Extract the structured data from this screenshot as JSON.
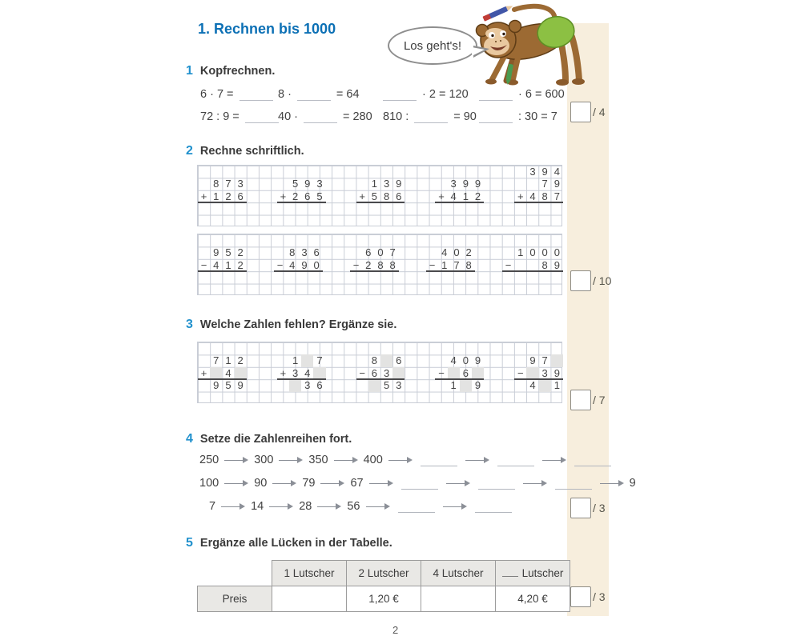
{
  "title": "1. Rechnen bis 1000",
  "bubble_text": "Los geht's!",
  "page_number": "2",
  "colors": {
    "title_blue": "#0c70b5",
    "section_blue": "#2191cd",
    "margin_beige": "#f7eedd",
    "grid_line": "#c9cdd6",
    "shaded_cell": "#e3e3e2"
  },
  "sections": [
    {
      "num": "1",
      "label": "Kopfrechnen.",
      "score": "/ 4"
    },
    {
      "num": "2",
      "label": "Rechne schriftlich.",
      "score": "/ 10"
    },
    {
      "num": "3",
      "label": "Welche Zahlen fehlen? Ergänze sie.",
      "score": "/ 7"
    },
    {
      "num": "4",
      "label": "Setze die Zahlenreihen fort.",
      "score": "/ 3"
    },
    {
      "num": "5",
      "label": "Ergänze alle Lücken in der Tabelle.",
      "score": "/ 3"
    }
  ],
  "exercise1": {
    "rows": [
      [
        [
          "6 · 7 =",
          "_"
        ],
        [
          "8 ·",
          "_",
          "= 64"
        ],
        [
          "_",
          "· 2 = 120"
        ],
        [
          "_",
          "· 6 = 600"
        ]
      ],
      [
        [
          "72 : 9 =",
          "_"
        ],
        [
          "40 ·",
          "_",
          "= 280"
        ],
        [
          "810 :",
          "_",
          "= 90"
        ],
        [
          "_",
          ": 30 = 7"
        ]
      ]
    ]
  },
  "exercise2": {
    "blocks": [
      {
        "problems": [
          {
            "cols": 4,
            "rows": [
              [
                "",
                "",
                "",
                ""
              ],
              [
                "",
                "8",
                "7",
                "3"
              ],
              [
                "+",
                "1",
                "2",
                "6"
              ]
            ],
            "answer": [
              "",
              "",
              "",
              ""
            ]
          },
          {
            "cols": 4,
            "rows": [
              [
                "",
                "",
                "",
                ""
              ],
              [
                "",
                "5",
                "9",
                "3"
              ],
              [
                "+",
                "2",
                "6",
                "5"
              ]
            ],
            "answer": [
              "",
              "",
              "",
              ""
            ]
          },
          {
            "cols": 4,
            "rows": [
              [
                "",
                "",
                "",
                ""
              ],
              [
                "",
                "1",
                "3",
                "9"
              ],
              [
                "+",
                "5",
                "8",
                "6"
              ]
            ],
            "answer": [
              "",
              "",
              "",
              ""
            ]
          },
          {
            "cols": 4,
            "rows": [
              [
                "",
                "",
                "",
                ""
              ],
              [
                "",
                "3",
                "9",
                "9"
              ],
              [
                "+",
                "4",
                "1",
                "2"
              ]
            ],
            "answer": [
              "",
              "",
              "",
              ""
            ]
          },
          {
            "cols": 4,
            "rows": [
              [
                "",
                "3",
                "9",
                "4"
              ],
              [
                "",
                "",
                "7",
                "9"
              ],
              [
                "+",
                "4",
                "8",
                "7"
              ]
            ],
            "answer": [
              "",
              "",
              "",
              ""
            ]
          }
        ]
      },
      {
        "problems": [
          {
            "cols": 4,
            "rows": [
              [
                "",
                "",
                "",
                ""
              ],
              [
                "",
                "9",
                "5",
                "2"
              ],
              [
                "−",
                "4",
                "1",
                "2"
              ]
            ],
            "answer": [
              "",
              "",
              "",
              ""
            ]
          },
          {
            "cols": 4,
            "rows": [
              [
                "",
                "",
                "",
                ""
              ],
              [
                "",
                "8",
                "3",
                "6"
              ],
              [
                "−",
                "4",
                "9",
                "0"
              ]
            ],
            "answer": [
              "",
              "",
              "",
              ""
            ]
          },
          {
            "cols": 4,
            "rows": [
              [
                "",
                "",
                "",
                ""
              ],
              [
                "",
                "6",
                "0",
                "7"
              ],
              [
                "−",
                "2",
                "8",
                "8"
              ]
            ],
            "answer": [
              "",
              "",
              "",
              ""
            ]
          },
          {
            "cols": 4,
            "rows": [
              [
                "",
                "",
                "",
                ""
              ],
              [
                "",
                "4",
                "0",
                "2"
              ],
              [
                "−",
                "1",
                "7",
                "8"
              ]
            ],
            "answer": [
              "",
              "",
              "",
              ""
            ]
          },
          {
            "cols": 5,
            "rows": [
              [
                "",
                "",
                "",
                "",
                ""
              ],
              [
                "",
                "1",
                "0",
                "0",
                "0"
              ],
              [
                "−",
                "",
                "",
                "8",
                "9"
              ]
            ],
            "answer": [
              "",
              "",
              "",
              "",
              ""
            ]
          }
        ]
      }
    ]
  },
  "exercise3": {
    "problems": [
      {
        "cols": 4,
        "rows": [
          [
            "",
            "",
            "",
            ""
          ],
          [
            "",
            "7",
            "1",
            "2"
          ],
          [
            "+",
            "#",
            "4",
            "#"
          ]
        ],
        "answer": [
          "",
          "9",
          "5",
          "9"
        ]
      },
      {
        "cols": 4,
        "rows": [
          [
            "",
            "",
            "",
            ""
          ],
          [
            "",
            "1",
            "#",
            "7"
          ],
          [
            "+",
            "3",
            "4",
            "#"
          ]
        ],
        "answer": [
          "",
          "#",
          "3",
          "6"
        ]
      },
      {
        "cols": 4,
        "rows": [
          [
            "",
            "",
            "",
            ""
          ],
          [
            "",
            "8",
            "#",
            "6"
          ],
          [
            "−",
            "6",
            "3",
            "#"
          ]
        ],
        "answer": [
          "",
          "#",
          "5",
          "3"
        ]
      },
      {
        "cols": 4,
        "rows": [
          [
            "",
            "",
            "",
            ""
          ],
          [
            "",
            "4",
            "0",
            "9"
          ],
          [
            "−",
            "#",
            "6",
            "#"
          ]
        ],
        "answer": [
          "",
          "1",
          "#",
          "9"
        ]
      },
      {
        "cols": 4,
        "rows": [
          [
            "",
            "",
            "",
            ""
          ],
          [
            "",
            "9",
            "7",
            "#"
          ],
          [
            "−",
            "#",
            "3",
            "9"
          ]
        ],
        "answer": [
          "",
          "4",
          "#",
          "1"
        ]
      }
    ]
  },
  "exercise4": {
    "sequences": [
      {
        "tokens": [
          "250",
          "→",
          "300",
          "→",
          "350",
          "→",
          "400",
          "→",
          "_",
          "→",
          "_",
          "→",
          "_"
        ]
      },
      {
        "tokens": [
          "100",
          "→",
          "90",
          "→",
          "79",
          "→",
          "67",
          "→",
          "_",
          "→",
          "_",
          "→",
          "_",
          "→",
          "9"
        ]
      },
      {
        "tokens": [
          "7",
          "→",
          "14",
          "→",
          "28",
          "→",
          "56",
          "→",
          "_",
          "→",
          "_"
        ]
      }
    ]
  },
  "exercise5": {
    "headers": [
      "",
      "1 Lutscher",
      "2 Lutscher",
      "4 Lutscher",
      "___ Lutscher"
    ],
    "row_label": "Preis",
    "values": [
      "",
      "1,20 €",
      "",
      "4,20 €"
    ]
  }
}
